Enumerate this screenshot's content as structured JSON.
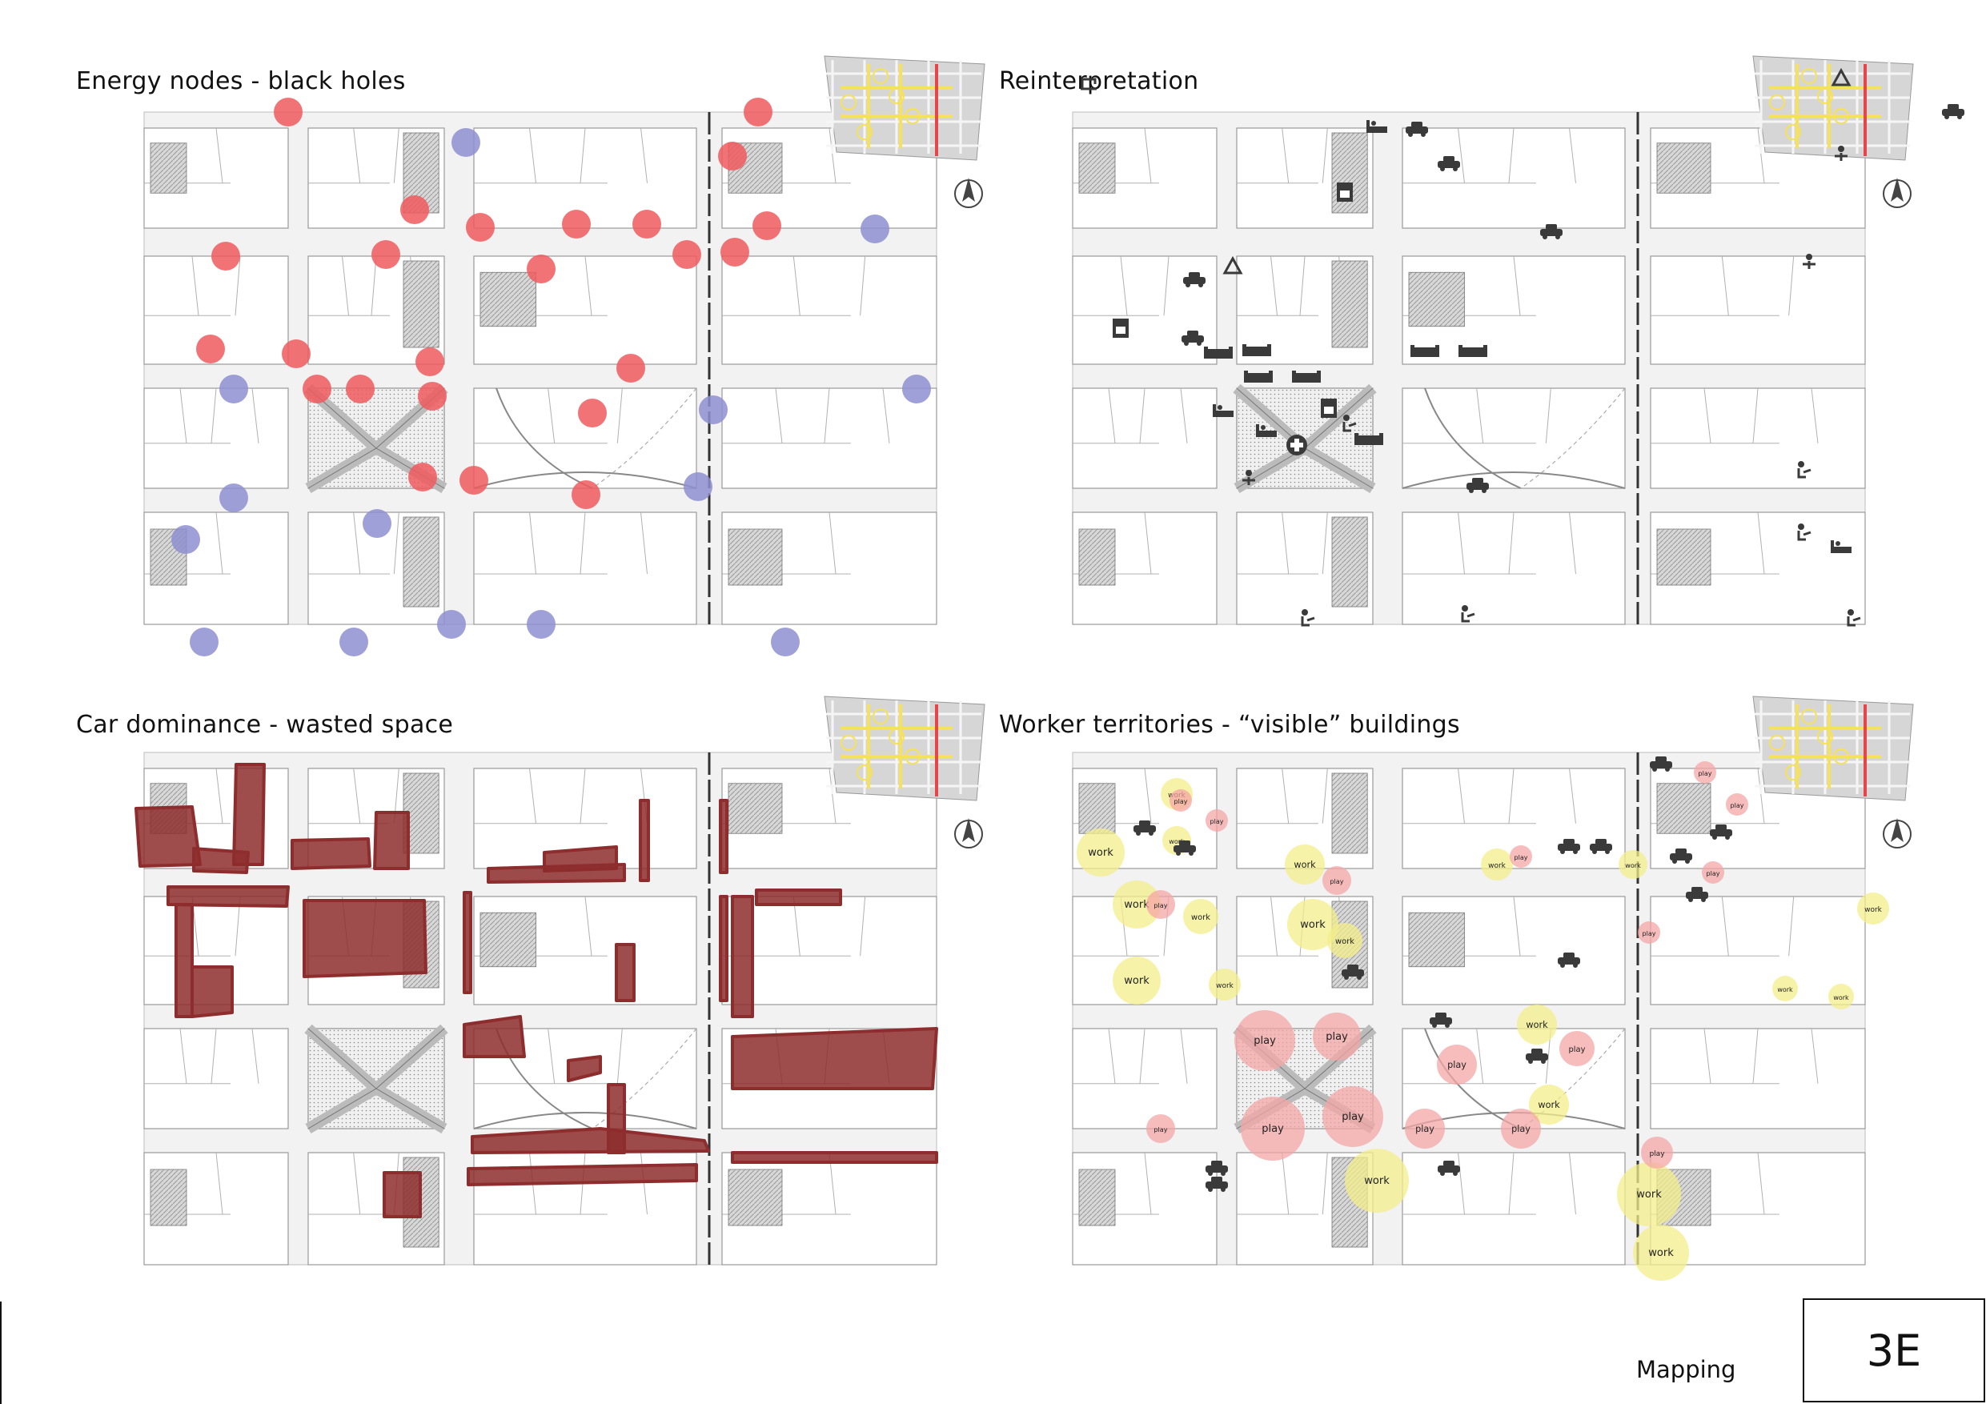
{
  "sheet": {
    "panels": [
      {
        "id": "energy",
        "title": "Energy nodes - black holes"
      },
      {
        "id": "reinterp",
        "title": "Reinterpretation"
      },
      {
        "id": "cars",
        "title": "Car dominance - wasted space"
      },
      {
        "id": "workers",
        "title": "Worker territories - “visible” buildings"
      }
    ],
    "section_label": "Mapping",
    "sheet_number": "3E"
  },
  "map_labels": {
    "work": "work",
    "play": "play"
  },
  "legend_colors": {
    "energy_node": "#f05a5e",
    "black_hole": "#8e8fd0",
    "car_space": "#8e2d2d",
    "work_territory": "#f3ee8a",
    "play_territory": "#f4a6a6",
    "key_map_highlight": "#f6e25a",
    "key_map_accent": "#e8454a"
  },
  "icons": [
    "north-arrow-icon",
    "car-icon",
    "recycle-icon",
    "sewing-machine-icon",
    "bed-icon",
    "sofa-icon",
    "stove-icon",
    "medical-cross-icon",
    "person-laptop-icon",
    "gym-icon"
  ]
}
